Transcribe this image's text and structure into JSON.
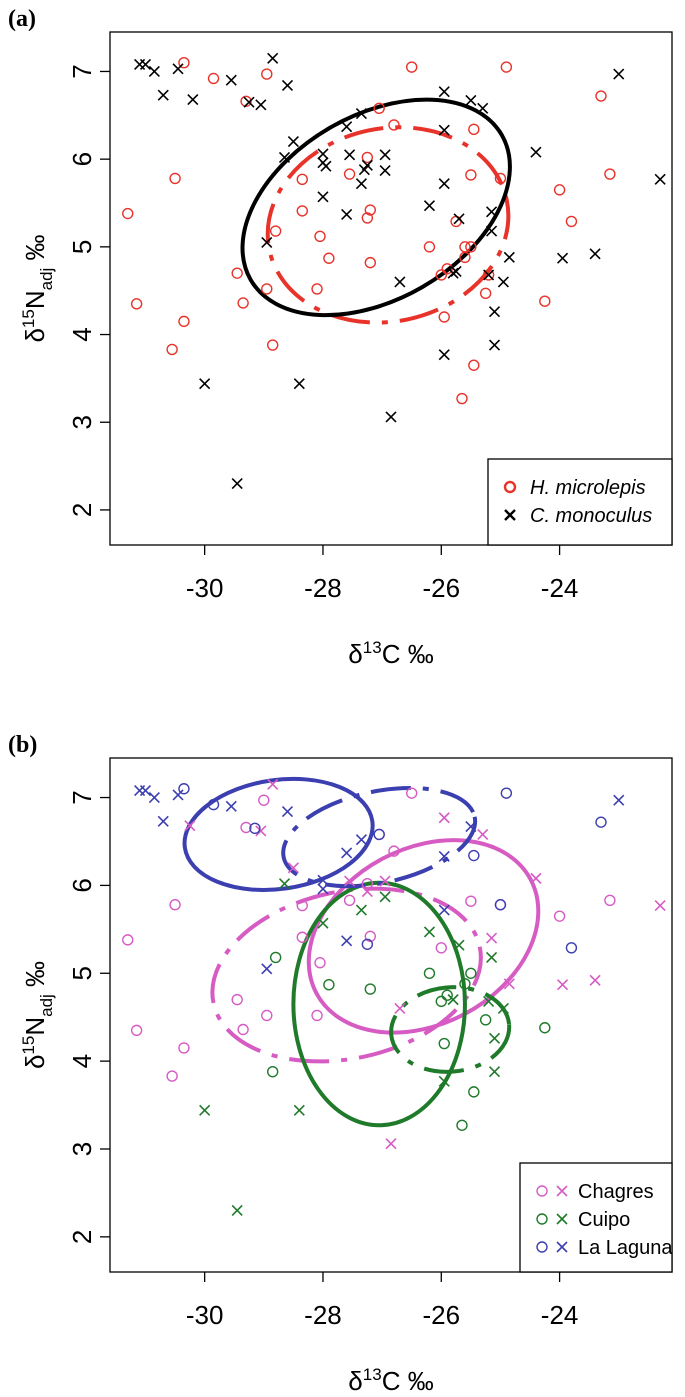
{
  "figure": {
    "panel_a_label": "(a)",
    "panel_b_label": "(b)"
  },
  "colors": {
    "hmicro": "#e8332a",
    "cmono": "#000000",
    "chagres": "#d65cc4",
    "cuipo": "#1f7a2a",
    "laguna": "#3b3fb0"
  },
  "chart_data": [
    {
      "type": "scatter",
      "panel": "(a)",
      "xlabel": "δ13C ‰",
      "ylabel": "δ15Nadj ‰",
      "xlim": [
        -31.6,
        -22.1
      ],
      "ylim": [
        1.6,
        7.45
      ],
      "xticks": [
        "-30",
        "-28",
        "-26",
        "-24"
      ],
      "yticks": [
        "2",
        "3",
        "4",
        "5",
        "6",
        "7"
      ],
      "legend_position": "bottom-right",
      "series": [
        {
          "name": "H. microlepis",
          "marker": "circle",
          "points": [
            [
              -30.35,
              7.1
            ],
            [
              -29.85,
              6.92
            ],
            [
              -29.3,
              6.66
            ],
            [
              -28.95,
              6.97
            ],
            [
              -26.5,
              7.05
            ],
            [
              -24.9,
              7.05
            ],
            [
              -23.3,
              6.72
            ],
            [
              -27.05,
              6.58
            ],
            [
              -26.8,
              6.39
            ],
            [
              -25.45,
              6.34
            ],
            [
              -27.25,
              6.02
            ],
            [
              -30.5,
              5.78
            ],
            [
              -28.35,
              5.77
            ],
            [
              -27.55,
              5.83
            ],
            [
              -25.5,
              5.82
            ],
            [
              -25.0,
              5.78
            ],
            [
              -23.15,
              5.83
            ],
            [
              -24.0,
              5.65
            ],
            [
              -28.35,
              5.41
            ],
            [
              -27.2,
              5.42
            ],
            [
              -27.25,
              5.33
            ],
            [
              -31.3,
              5.38
            ],
            [
              -23.8,
              5.29
            ],
            [
              -25.75,
              5.29
            ],
            [
              -25.6,
              5.0
            ],
            [
              -28.8,
              5.18
            ],
            [
              -28.05,
              5.12
            ],
            [
              -26.2,
              5.0
            ],
            [
              -25.5,
              5.0
            ],
            [
              -27.9,
              4.87
            ],
            [
              -25.6,
              4.88
            ],
            [
              -27.2,
              4.82
            ],
            [
              -25.9,
              4.75
            ],
            [
              -29.45,
              4.7
            ],
            [
              -26.0,
              4.68
            ],
            [
              -28.95,
              4.52
            ],
            [
              -28.1,
              4.52
            ],
            [
              -25.25,
              4.47
            ],
            [
              -25.2,
              4.68
            ],
            [
              -29.35,
              4.36
            ],
            [
              -31.15,
              4.35
            ],
            [
              -24.25,
              4.38
            ],
            [
              -30.35,
              4.15
            ],
            [
              -25.95,
              4.2
            ],
            [
              -30.55,
              3.83
            ],
            [
              -28.85,
              3.88
            ],
            [
              -25.45,
              3.65
            ],
            [
              -25.65,
              3.27
            ]
          ]
        },
        {
          "name": "C. monoculus",
          "marker": "x",
          "points": [
            [
              -31.1,
              7.08
            ],
            [
              -31.0,
              7.08
            ],
            [
              -30.85,
              7.0
            ],
            [
              -30.45,
              7.03
            ],
            [
              -30.7,
              6.73
            ],
            [
              -30.2,
              6.68
            ],
            [
              -29.55,
              6.9
            ],
            [
              -28.85,
              7.15
            ],
            [
              -29.25,
              6.65
            ],
            [
              -29.05,
              6.62
            ],
            [
              -28.6,
              6.84
            ],
            [
              -27.35,
              6.52
            ],
            [
              -27.6,
              6.37
            ],
            [
              -25.95,
              6.77
            ],
            [
              -25.5,
              6.67
            ],
            [
              -25.3,
              6.58
            ],
            [
              -23.0,
              6.97
            ],
            [
              -28.5,
              6.2
            ],
            [
              -28.65,
              6.02
            ],
            [
              -28.0,
              6.06
            ],
            [
              -28.0,
              5.96
            ],
            [
              -27.95,
              5.92
            ],
            [
              -27.55,
              6.05
            ],
            [
              -27.25,
              5.93
            ],
            [
              -26.95,
              6.05
            ],
            [
              -27.3,
              5.88
            ],
            [
              -27.35,
              5.72
            ],
            [
              -26.95,
              5.87
            ],
            [
              -25.95,
              6.33
            ],
            [
              -25.95,
              5.72
            ],
            [
              -24.4,
              6.08
            ],
            [
              -22.3,
              5.77
            ],
            [
              -28.0,
              5.57
            ],
            [
              -27.6,
              5.37
            ],
            [
              -26.2,
              5.47
            ],
            [
              -25.7,
              5.32
            ],
            [
              -25.15,
              5.4
            ],
            [
              -25.15,
              5.18
            ],
            [
              -28.95,
              5.05
            ],
            [
              -26.7,
              4.6
            ],
            [
              -25.8,
              4.7
            ],
            [
              -25.75,
              4.72
            ],
            [
              -25.2,
              4.68
            ],
            [
              -24.95,
              4.6
            ],
            [
              -24.85,
              4.88
            ],
            [
              -23.95,
              4.87
            ],
            [
              -23.4,
              4.92
            ],
            [
              -25.1,
              4.26
            ],
            [
              -25.1,
              3.88
            ],
            [
              -25.95,
              3.77
            ],
            [
              -30.0,
              3.44
            ],
            [
              -28.4,
              3.44
            ],
            [
              -26.85,
              3.06
            ],
            [
              -29.45,
              2.3
            ]
          ]
        }
      ],
      "ellipses": [
        {
          "name": "H. microlepis",
          "style": "dashed",
          "center": [
            -26.9,
            5.25
          ],
          "rx": 2.05,
          "ry": 1.1,
          "tilt": -12
        },
        {
          "name": "C. monoculus",
          "style": "solid",
          "center": [
            -27.1,
            5.45
          ],
          "rx": 2.45,
          "ry": 1.05,
          "tilt": -30
        }
      ]
    },
    {
      "type": "scatter",
      "panel": "(b)",
      "xlabel": "δ13C ‰",
      "ylabel": "δ15Nadj ‰",
      "xlim": [
        -31.6,
        -22.1
      ],
      "ylim": [
        1.6,
        7.45
      ],
      "xticks": [
        "-30",
        "-28",
        "-26",
        "-24"
      ],
      "yticks": [
        "2",
        "3",
        "4",
        "5",
        "6",
        "7"
      ],
      "legend_position": "bottom-right",
      "series": [
        {
          "name": "Chagres",
          "marker": "circle",
          "points": [
            [
              -29.3,
              6.66
            ],
            [
              -29.0,
              6.97
            ],
            [
              -26.5,
              7.05
            ],
            [
              -26.8,
              6.39
            ],
            [
              -27.05,
              6.58
            ],
            [
              -27.25,
              6.02
            ],
            [
              -27.55,
              5.83
            ],
            [
              -28.35,
              5.77
            ],
            [
              -30.5,
              5.78
            ],
            [
              -31.3,
              5.38
            ],
            [
              -28.35,
              5.41
            ],
            [
              -27.2,
              5.42
            ],
            [
              -28.05,
              5.12
            ],
            [
              -26.0,
              5.29
            ],
            [
              -29.45,
              4.7
            ],
            [
              -28.95,
              4.52
            ],
            [
              -28.1,
              4.52
            ],
            [
              -29.35,
              4.36
            ],
            [
              -31.15,
              4.35
            ],
            [
              -30.35,
              4.15
            ],
            [
              -30.55,
              3.83
            ],
            [
              -23.15,
              5.83
            ],
            [
              -24.0,
              5.65
            ],
            [
              -25.5,
              5.82
            ],
            [
              -25.0,
              5.78
            ]
          ]
        },
        {
          "name": "Chagres",
          "marker": "x",
          "points": [
            [
              -30.25,
              6.68
            ],
            [
              -28.85,
              7.15
            ],
            [
              -29.05,
              6.62
            ],
            [
              -28.5,
              6.2
            ],
            [
              -27.55,
              6.05
            ],
            [
              -27.25,
              5.93
            ],
            [
              -26.95,
              6.05
            ],
            [
              -25.95,
              6.77
            ],
            [
              -25.3,
              6.58
            ],
            [
              -24.4,
              6.08
            ],
            [
              -22.3,
              5.77
            ],
            [
              -25.15,
              5.4
            ],
            [
              -26.7,
              4.6
            ],
            [
              -24.85,
              4.88
            ],
            [
              -23.95,
              4.87
            ],
            [
              -23.4,
              4.92
            ],
            [
              -26.85,
              3.06
            ]
          ]
        },
        {
          "name": "Cuipo",
          "marker": "circle",
          "points": [
            [
              -28.8,
              5.18
            ],
            [
              -27.9,
              4.87
            ],
            [
              -27.2,
              4.82
            ],
            [
              -26.2,
              5.0
            ],
            [
              -25.5,
              5.0
            ],
            [
              -25.6,
              4.88
            ],
            [
              -25.9,
              4.75
            ],
            [
              -26.0,
              4.68
            ],
            [
              -25.25,
              4.47
            ],
            [
              -24.25,
              4.38
            ],
            [
              -25.95,
              4.2
            ],
            [
              -28.85,
              3.88
            ],
            [
              -25.45,
              3.65
            ],
            [
              -25.65,
              3.27
            ]
          ]
        },
        {
          "name": "Cuipo",
          "marker": "x",
          "points": [
            [
              -28.65,
              6.02
            ],
            [
              -28.0,
              5.57
            ],
            [
              -27.35,
              5.72
            ],
            [
              -26.95,
              5.87
            ],
            [
              -26.2,
              5.47
            ],
            [
              -25.7,
              5.32
            ],
            [
              -25.15,
              5.18
            ],
            [
              -25.8,
              4.7
            ],
            [
              -25.2,
              4.68
            ],
            [
              -24.95,
              4.6
            ],
            [
              -25.1,
              4.26
            ],
            [
              -25.1,
              3.88
            ],
            [
              -25.95,
              3.77
            ],
            [
              -30.0,
              3.44
            ],
            [
              -28.4,
              3.44
            ],
            [
              -29.45,
              2.3
            ]
          ]
        },
        {
          "name": "La Laguna",
          "marker": "circle",
          "points": [
            [
              -30.35,
              7.1
            ],
            [
              -29.85,
              6.92
            ],
            [
              -29.15,
              6.65
            ],
            [
              -27.05,
              6.58
            ],
            [
              -24.9,
              7.05
            ],
            [
              -23.3,
              6.72
            ],
            [
              -25.45,
              6.34
            ],
            [
              -25.0,
              5.78
            ],
            [
              -23.8,
              5.29
            ],
            [
              -27.25,
              5.33
            ]
          ]
        },
        {
          "name": "La Laguna",
          "marker": "x",
          "points": [
            [
              -31.1,
              7.08
            ],
            [
              -31.0,
              7.08
            ],
            [
              -30.85,
              7.0
            ],
            [
              -30.45,
              7.03
            ],
            [
              -30.7,
              6.73
            ],
            [
              -29.55,
              6.9
            ],
            [
              -28.6,
              6.84
            ],
            [
              -27.35,
              6.52
            ],
            [
              -27.6,
              6.37
            ],
            [
              -25.5,
              6.67
            ],
            [
              -23.0,
              6.97
            ],
            [
              -28.0,
              6.06
            ],
            [
              -28.0,
              5.96
            ],
            [
              -25.95,
              6.33
            ],
            [
              -25.95,
              5.72
            ],
            [
              -27.6,
              5.37
            ],
            [
              -28.95,
              5.05
            ]
          ]
        }
      ],
      "ellipses": [
        {
          "name": "Chagres",
          "style": "solid",
          "center": [
            -26.3,
            5.42
          ],
          "rx": 2.05,
          "ry": 1.0,
          "tilt": -28
        },
        {
          "name": "Chagres",
          "style": "dashed",
          "center": [
            -27.6,
            4.98
          ],
          "rx": 2.3,
          "ry": 0.95,
          "tilt": -12
        },
        {
          "name": "Cuipo",
          "style": "solid",
          "center": [
            -27.05,
            4.65
          ],
          "rx": 1.45,
          "ry": 1.38,
          "tilt": 0
        },
        {
          "name": "Cuipo",
          "style": "dashed",
          "center": [
            -25.85,
            4.36
          ],
          "rx": 1.0,
          "ry": 0.48,
          "tilt": -5
        },
        {
          "name": "La Laguna",
          "style": "solid",
          "center": [
            -28.75,
            6.58
          ],
          "rx": 1.6,
          "ry": 0.62,
          "tilt": -8
        },
        {
          "name": "La Laguna",
          "style": "dashed",
          "center": [
            -27.05,
            6.55
          ],
          "rx": 1.65,
          "ry": 0.52,
          "tilt": -12
        }
      ]
    }
  ],
  "legends": [
    {
      "entries": [
        {
          "marker": "circle",
          "label": "H. microlepis",
          "color": "#e8332a",
          "italic": true
        },
        {
          "marker": "x",
          "label": "C. monoculus",
          "color": "#000000",
          "italic": true
        }
      ]
    },
    {
      "entries": [
        {
          "marker": "both",
          "label": "Chagres",
          "color": "#d65cc4"
        },
        {
          "marker": "both",
          "label": "Cuipo",
          "color": "#1f7a2a"
        },
        {
          "marker": "both",
          "label": "La Laguna",
          "color": "#3b3fb0"
        }
      ]
    }
  ]
}
